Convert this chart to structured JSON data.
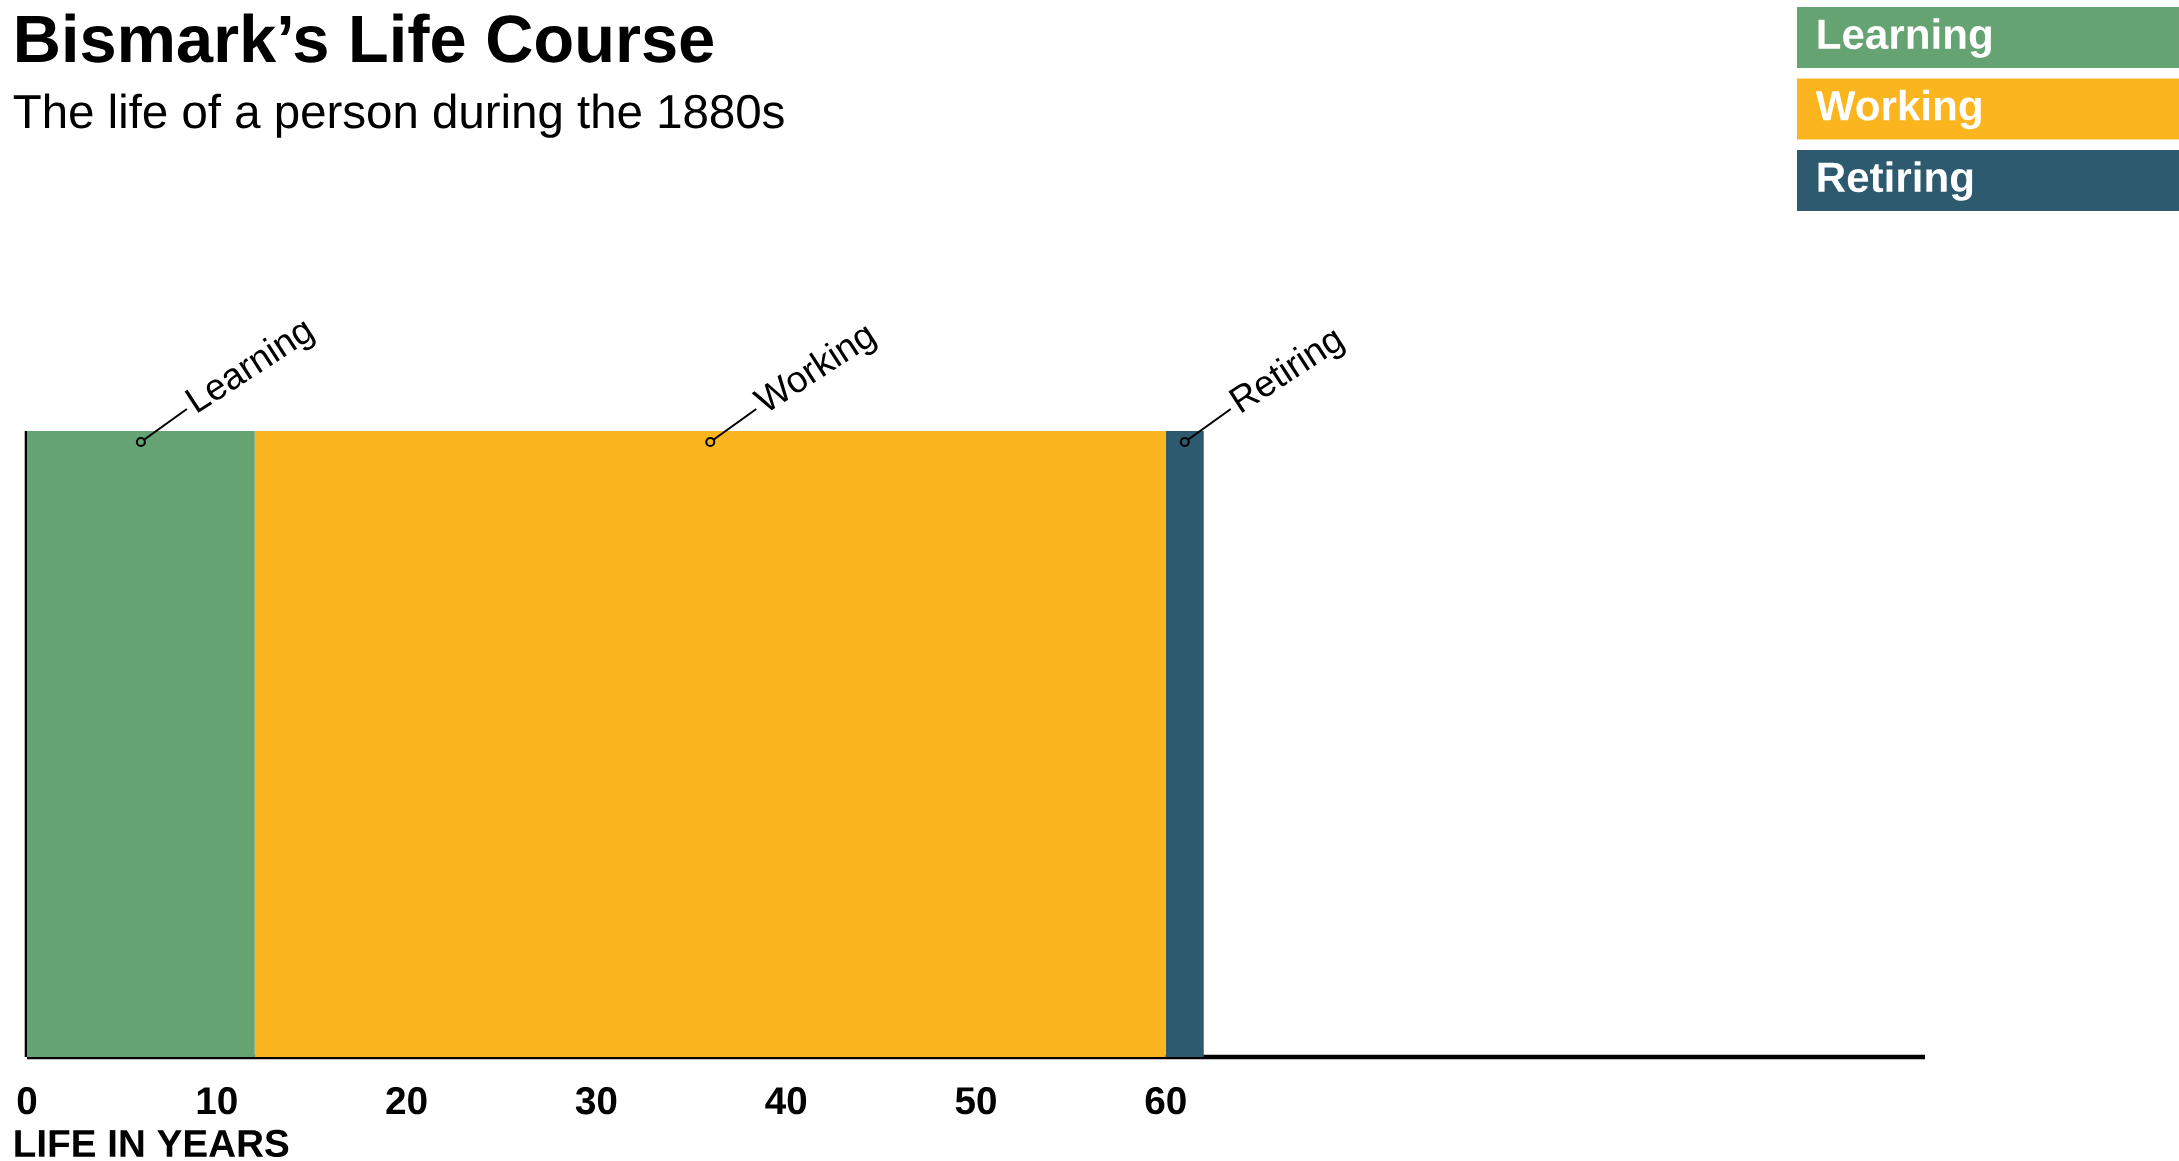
{
  "chart_data": {
    "type": "bar",
    "orientation": "horizontal",
    "stacked": true,
    "title": "Bismark’s Life Course",
    "subtitle": "The life of a person during the 1880s",
    "xlabel": "LIFE IN YEARS",
    "categories": [
      null
    ],
    "series": [
      {
        "name": "Learning",
        "color": "#66a373",
        "values": [
          12
        ]
      },
      {
        "name": "Working",
        "color": "#fbb51e",
        "values": [
          48
        ]
      },
      {
        "name": "Retiring",
        "color": "#2d5a6e",
        "values": [
          2
        ]
      }
    ],
    "xlim": [
      0,
      100
    ],
    "xticks": [
      0,
      10,
      20,
      30,
      40,
      50,
      60
    ],
    "legend": "top right",
    "annotations": [
      "Learning",
      "Working",
      "Retiring"
    ]
  }
}
